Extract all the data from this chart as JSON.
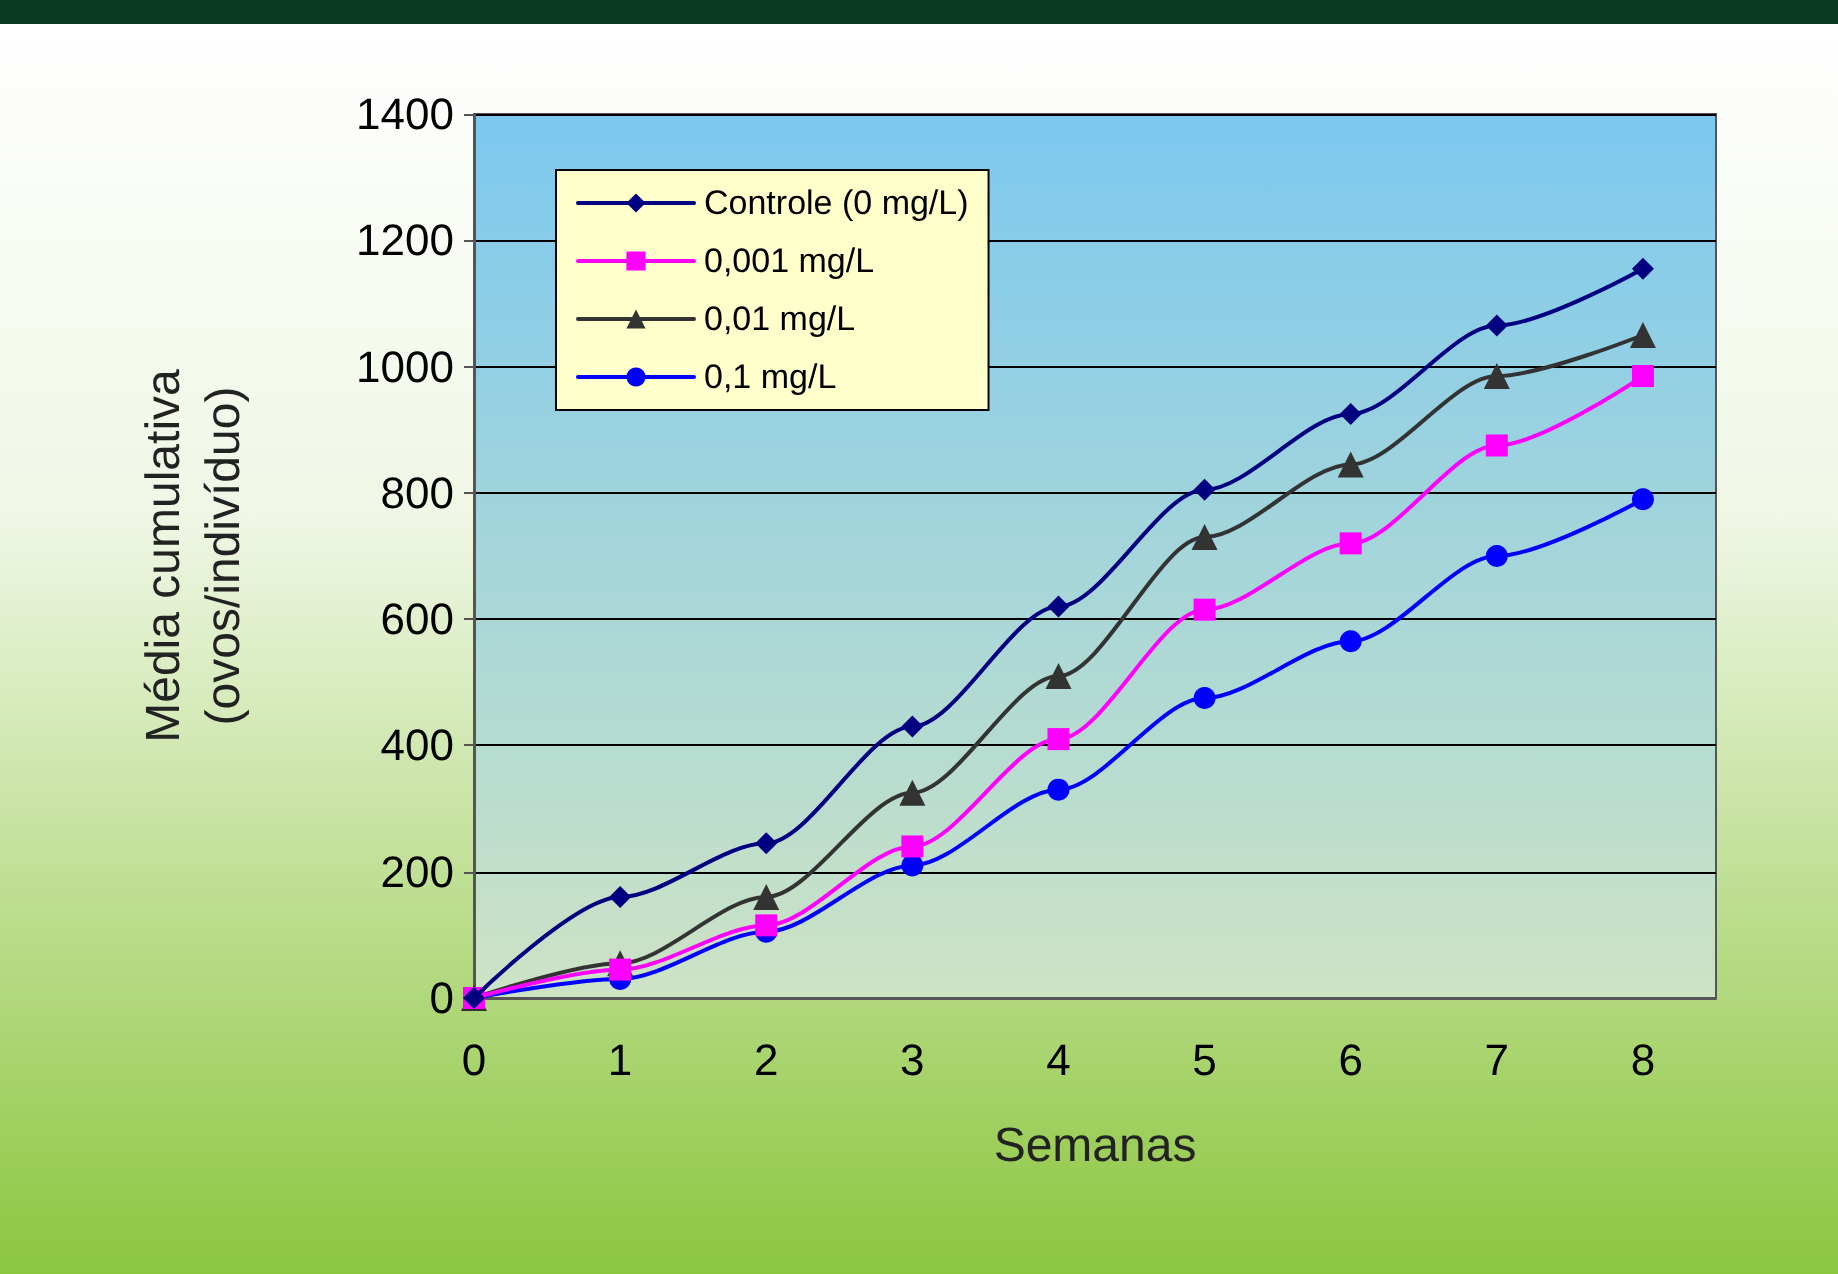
{
  "chart_data": {
    "type": "line",
    "xlabel": "Semanas",
    "ylabel": "Média cumulativa\n(ovos/indivíduo)",
    "x": [
      0,
      1,
      2,
      3,
      4,
      5,
      6,
      7,
      8
    ],
    "series": [
      {
        "name": "Controle (0 mg/L)",
        "color": "#000080",
        "marker": "diamond",
        "values": [
          0,
          160,
          245,
          430,
          620,
          805,
          925,
          1065,
          1155
        ]
      },
      {
        "name": "0,001 mg/L",
        "color": "#ff00ff",
        "marker": "square",
        "values": [
          0,
          45,
          115,
          240,
          410,
          615,
          720,
          875,
          985
        ]
      },
      {
        "name": "0,01 mg/L",
        "color": "#333333",
        "marker": "triangle",
        "values": [
          0,
          55,
          160,
          325,
          510,
          730,
          845,
          985,
          1050
        ]
      },
      {
        "name": "0,1 mg/L",
        "color": "#0000ff",
        "marker": "circle",
        "values": [
          0,
          30,
          105,
          210,
          330,
          475,
          565,
          700,
          790
        ]
      }
    ],
    "xlim": [
      0,
      8.5
    ],
    "xticks": [
      0,
      1,
      2,
      3,
      4,
      5,
      6,
      7,
      8
    ],
    "ylim": [
      0,
      1400
    ],
    "yticks": [
      0,
      200,
      400,
      600,
      800,
      1000,
      1200,
      1400
    ],
    "grid": "y",
    "legend": "top left",
    "line_style": "solid"
  }
}
